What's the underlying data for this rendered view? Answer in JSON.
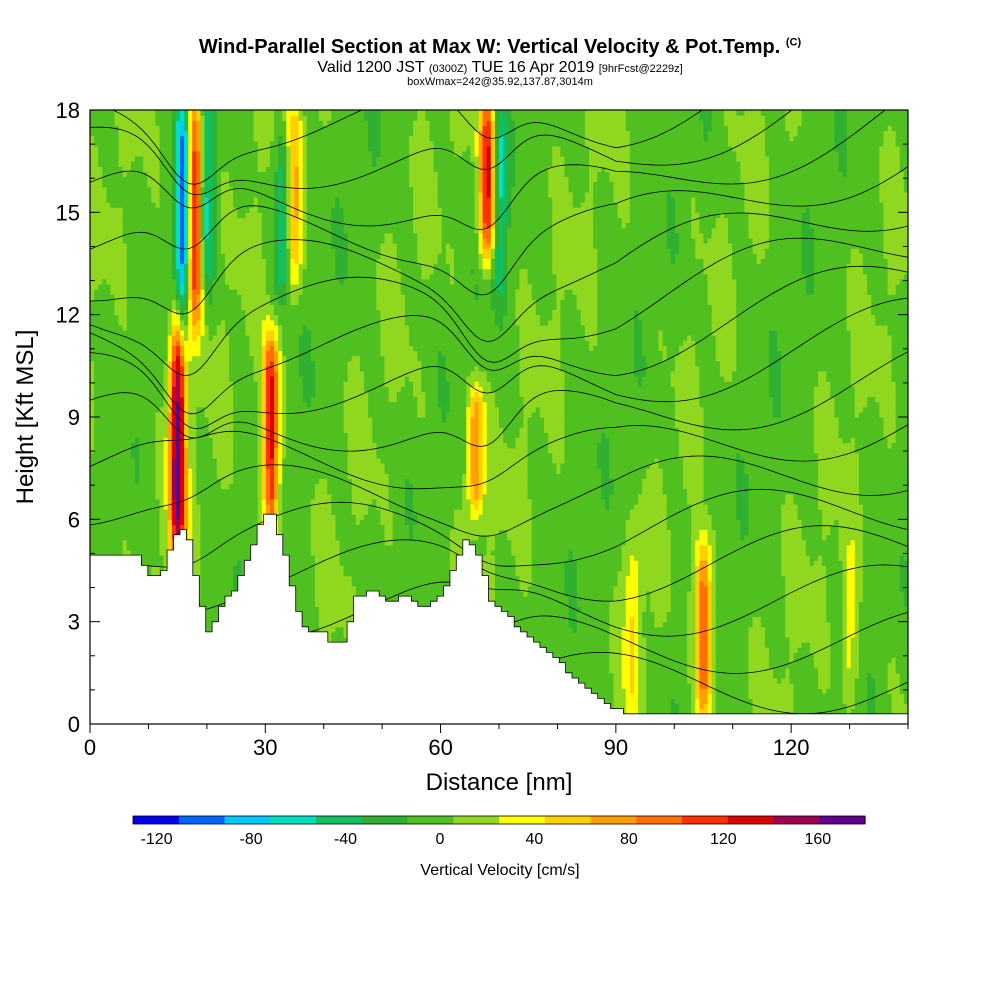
{
  "header": {
    "title": "Wind-Parallel Section at Max W: Vertical Velocity & Pot.Temp.",
    "title_tag": "(C)",
    "valid_prefix": "Valid 1200 JST",
    "valid_utc": "(0300Z)",
    "valid_date": "TUE 16 Apr 2019",
    "forecast": "[9hrFcst@2229z]",
    "box_info": "boxWmax=242@35.92,137.87,3014m"
  },
  "chart_data": {
    "type": "heatmap",
    "title": "Wind-Parallel Section at Max W: Vertical Velocity & Pot.Temp.",
    "xlabel": "Distance [nm]",
    "ylabel": "Height [Kft MSL]",
    "xlim": [
      0,
      140
    ],
    "ylim": [
      0,
      18
    ],
    "x_ticks": [
      0,
      30,
      60,
      90,
      120
    ],
    "y_ticks": [
      0,
      3,
      6,
      9,
      12,
      15,
      18
    ],
    "colorbar": {
      "label": "Vertical Velocity [cm/s]",
      "ticks": [
        -120,
        -80,
        -40,
        0,
        40,
        80,
        120,
        160
      ],
      "range": [
        -130,
        180
      ],
      "colors": [
        "#0000ee",
        "#0066ff",
        "#00c8ff",
        "#00e0c0",
        "#10c060",
        "#30b030",
        "#50c020",
        "#90d820",
        "#ffff00",
        "#ffd000",
        "#ffa000",
        "#ff7000",
        "#ff3000",
        "#dd0000",
        "#a00050",
        "#600090"
      ]
    },
    "terrain_profile": {
      "x": [
        0,
        8,
        10,
        12,
        14,
        16,
        18,
        20,
        22,
        24,
        27,
        29,
        31,
        33,
        35,
        37,
        39,
        41,
        43,
        45,
        48,
        51,
        54,
        57,
        60,
        62,
        64,
        66,
        68,
        72,
        76,
        80,
        84,
        88,
        92,
        96,
        100,
        104,
        108,
        112,
        116,
        120,
        124,
        128,
        132,
        136,
        140
      ],
      "height_kft": [
        4.9,
        4.9,
        4.3,
        4.5,
        5.5,
        5.8,
        3.9,
        2.6,
        3.5,
        3.9,
        5.0,
        6.1,
        6.1,
        4.9,
        3.4,
        2.6,
        2.8,
        2.3,
        2.4,
        3.7,
        3.9,
        3.6,
        3.8,
        3.4,
        3.8,
        4.7,
        5.5,
        5.0,
        3.7,
        3.0,
        2.4,
        1.8,
        1.1,
        0.6,
        0.3,
        0.3,
        0.3,
        0.3,
        0.3,
        0.3,
        0.3,
        0.3,
        0.3,
        0.3,
        0.3,
        0.3,
        0.3
      ]
    },
    "updraft_cores": [
      {
        "x": 15,
        "z_low": 5,
        "z_high": 11.5,
        "w": 170
      },
      {
        "x": 18,
        "z_low": 12,
        "z_high": 18,
        "w": 130
      },
      {
        "x": 31,
        "z_low": 6,
        "z_high": 11,
        "w": 140
      },
      {
        "x": 35,
        "z_low": 13,
        "z_high": 18,
        "w": 60
      },
      {
        "x": 66,
        "z_low": 6.5,
        "z_high": 9.5,
        "w": 90
      },
      {
        "x": 68,
        "z_low": 14,
        "z_high": 18,
        "w": 130
      },
      {
        "x": 105,
        "z_low": 0.5,
        "z_high": 5,
        "w": 110
      },
      {
        "x": 93,
        "z_low": 0.5,
        "z_high": 5,
        "w": 40
      },
      {
        "x": 130,
        "z_low": 1,
        "z_high": 5,
        "w": 40
      }
    ],
    "downdraft_cores": [
      {
        "x": 16,
        "z_low": 12,
        "z_high": 18,
        "w": -110
      },
      {
        "x": 20,
        "z_low": 13,
        "z_high": 18,
        "w": -60
      },
      {
        "x": 33,
        "z_low": 13,
        "z_high": 17,
        "w": -60
      },
      {
        "x": 70,
        "z_low": 13,
        "z_high": 18,
        "w": -60
      }
    ]
  }
}
